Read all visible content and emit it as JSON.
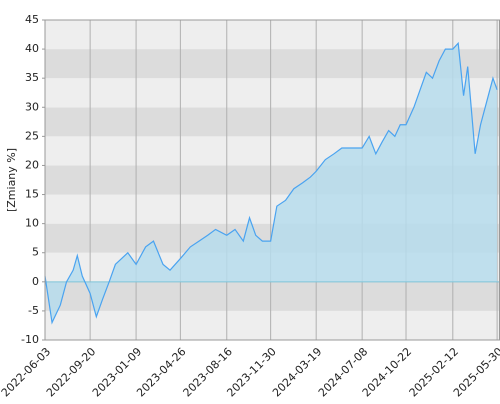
{
  "chart_data": {
    "type": "area",
    "y_label": "[Zmiany %]",
    "x": [
      "2022-06-03",
      "2022-06-20",
      "2022-07-10",
      "2022-07-25",
      "2022-08-10",
      "2022-08-20",
      "2022-09-01",
      "2022-09-20",
      "2022-10-05",
      "2022-10-20",
      "2022-11-05",
      "2022-11-20",
      "2022-12-05",
      "2022-12-20",
      "2023-01-09",
      "2023-02-01",
      "2023-02-20",
      "2023-03-15",
      "2023-04-01",
      "2023-04-26",
      "2023-05-20",
      "2023-06-10",
      "2023-07-01",
      "2023-07-20",
      "2023-08-16",
      "2023-09-05",
      "2023-09-25",
      "2023-10-10",
      "2023-10-25",
      "2023-11-10",
      "2023-11-30",
      "2023-12-15",
      "2024-01-05",
      "2024-01-25",
      "2024-02-15",
      "2024-03-05",
      "2024-03-19",
      "2024-04-10",
      "2024-05-01",
      "2024-05-20",
      "2024-06-10",
      "2024-07-08",
      "2024-07-25",
      "2024-08-10",
      "2024-08-25",
      "2024-09-10",
      "2024-09-25",
      "2024-10-08",
      "2024-10-22",
      "2024-11-10",
      "2024-11-25",
      "2024-12-10",
      "2024-12-25",
      "2025-01-10",
      "2025-01-25",
      "2025-02-12",
      "2025-02-25",
      "2025-03-10",
      "2025-03-20",
      "2025-04-07",
      "2025-04-20",
      "2025-05-05",
      "2025-05-20",
      "2025-05-30"
    ],
    "values": [
      1,
      -7,
      -4,
      0,
      2,
      4.5,
      1,
      -2,
      -6,
      -3,
      0,
      3,
      4,
      5,
      3,
      6,
      7,
      3,
      2,
      4,
      6,
      7,
      8,
      9,
      8,
      9,
      7,
      11,
      8,
      7,
      7,
      13,
      14,
      16,
      17,
      18,
      19,
      21,
      22,
      23,
      23,
      23,
      25,
      22,
      24,
      26,
      25,
      27,
      27,
      30,
      33,
      36,
      35,
      38,
      40,
      40,
      41,
      32,
      37,
      22,
      27,
      31,
      35,
      33
    ],
    "color": "#4aa3f0",
    "fill_color": "#b6dcec",
    "xlim": [
      "2022-06-03",
      "2025-06-06"
    ],
    "xticks": [
      "2022-06-03",
      "2022-09-20",
      "2023-01-09",
      "2023-04-26",
      "2023-08-16",
      "2023-11-30",
      "2024-03-19",
      "2024-07-08",
      "2024-10-22",
      "2025-02-12",
      "2025-05-30"
    ],
    "ylim": [
      -10,
      45
    ],
    "yticks": [
      -10,
      -5,
      0,
      5,
      10,
      15,
      20,
      25,
      30,
      35,
      40,
      45
    ],
    "grid": true
  }
}
